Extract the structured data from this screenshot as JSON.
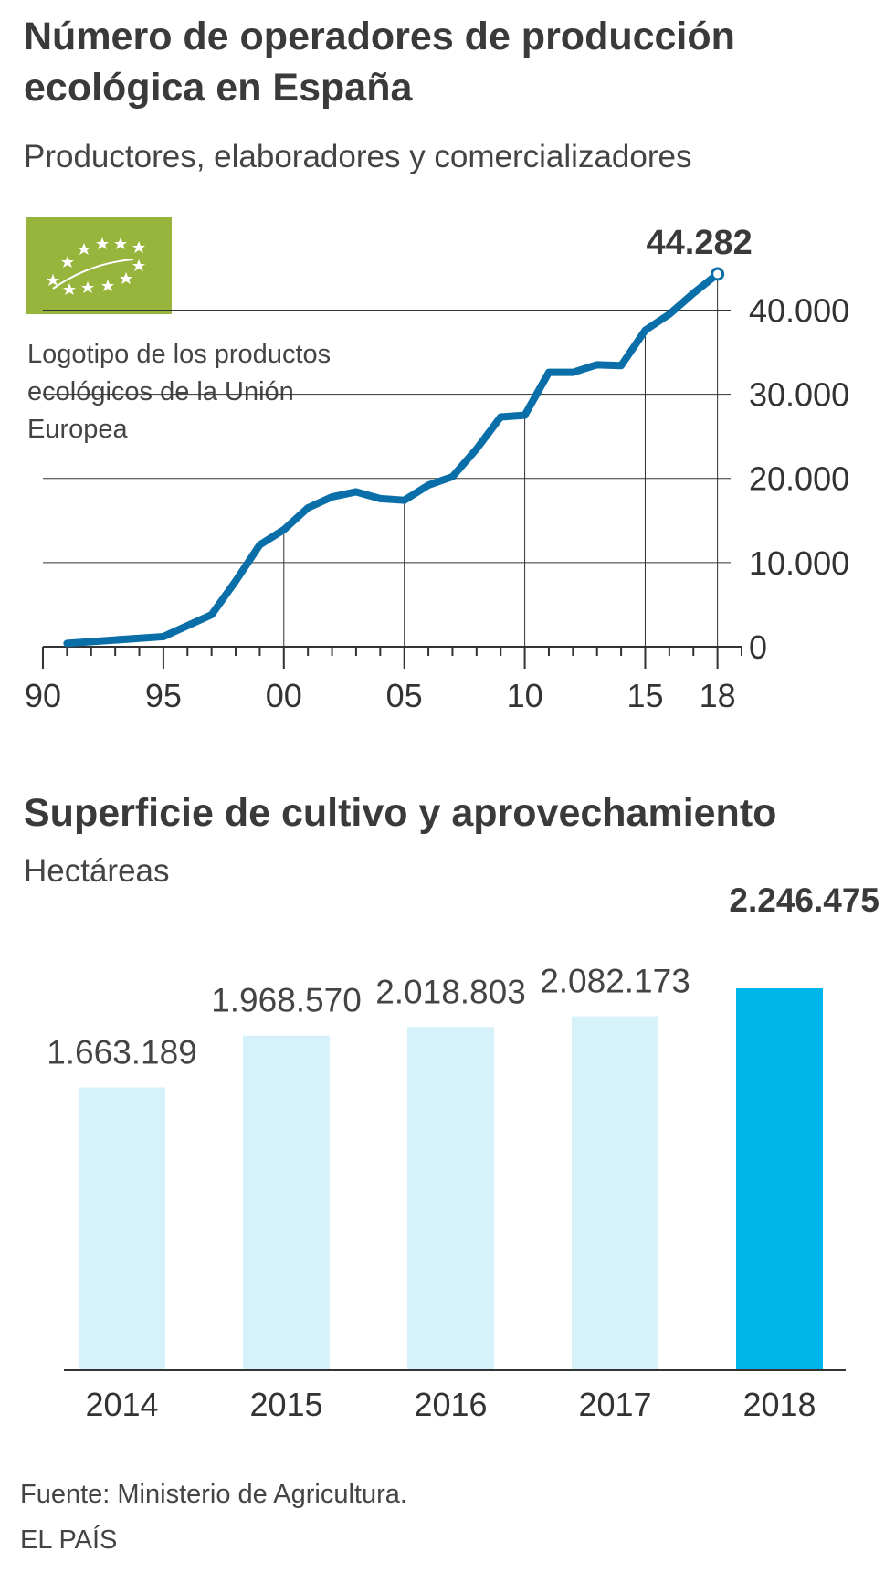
{
  "charts": {
    "operators": {
      "title": "Número de operadores de producción ecológica en España",
      "subtitle": "Productores, elaboradores y comercializadores",
      "logo_caption": "Logotipo de los productos ecológicos de la Unión Europea",
      "highlight_label": "44.282",
      "colors": {
        "line": "#0a6fa8",
        "grid": "#333333",
        "logo_bg": "#97b53c"
      }
    },
    "surface": {
      "title": "Superficie de cultivo y aprovechamiento",
      "subtitle": "Hectáreas",
      "colors": {
        "bar": "#d5f1fa",
        "highlight": "#00b5e9"
      }
    }
  },
  "chart_data": [
    {
      "type": "line",
      "title": "Número de operadores de producción ecológica en España",
      "subtitle": "Productores, elaboradores y comercializadores",
      "x": [
        1991,
        1995,
        1997,
        1998,
        1999,
        2000,
        2001,
        2002,
        2003,
        2004,
        2005,
        2006,
        2007,
        2008,
        2009,
        2010,
        2011,
        2012,
        2013,
        2014,
        2015,
        2016,
        2017,
        2018
      ],
      "series": [
        {
          "values": [
            400,
            1200,
            3800,
            7800,
            12100,
            13900,
            16500,
            17800,
            18400,
            17600,
            17400,
            19200,
            20200,
            23500,
            27300,
            27500,
            32600,
            32600,
            33500,
            33400,
            37600,
            39500,
            42000,
            44282
          ]
        }
      ],
      "xticks": [
        "90",
        "95",
        "00",
        "05",
        "10",
        "15",
        "18"
      ],
      "xtick_values": [
        1990,
        1995,
        2000,
        2005,
        2010,
        2015,
        2018
      ],
      "yticks": [
        "0",
        "10.000",
        "20.000",
        "30.000",
        "40.000"
      ],
      "ytick_values": [
        0,
        10000,
        20000,
        30000,
        40000
      ],
      "xlim": [
        1990,
        2019
      ],
      "ylim": [
        0,
        44282
      ],
      "annotation": "44.282"
    },
    {
      "type": "bar",
      "title": "Superficie de cultivo y aprovechamiento",
      "ylabel": "Hectáreas",
      "categories": [
        "2014",
        "2015",
        "2016",
        "2017",
        "2018"
      ],
      "values": [
        1663189,
        1968570,
        2018803,
        2082173,
        2246475
      ],
      "labels": [
        "1.663.189",
        "1.968.570",
        "2.018.803",
        "2.082.173",
        "2.246.475"
      ],
      "highlight_index": 4,
      "ylim": [
        0,
        2246475
      ]
    }
  ],
  "footer": {
    "source": "Fuente: Ministerio de Agricultura.",
    "credit": "EL PAÍS"
  }
}
